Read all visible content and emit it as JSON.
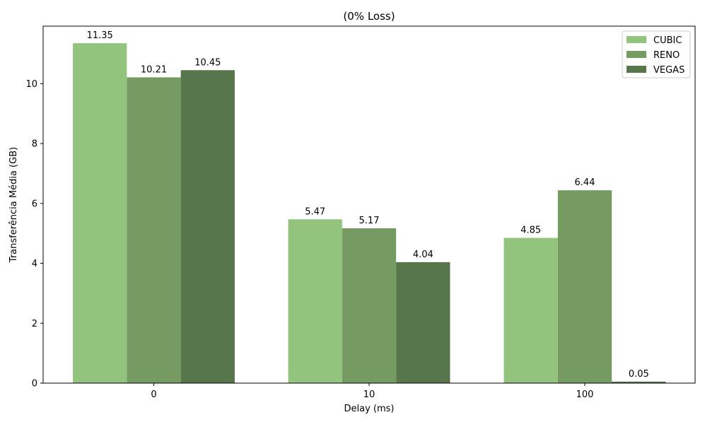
{
  "chart_data": {
    "type": "bar",
    "title": "(0% Loss)",
    "xlabel": "Delay (ms)",
    "ylabel": "Transferência Média (GB)",
    "categories": [
      "0",
      "10",
      "100"
    ],
    "series": [
      {
        "name": "CUBIC",
        "values": [
          11.35,
          5.47,
          4.85
        ],
        "labels": [
          "11.35",
          "5.47",
          "4.85"
        ],
        "color": "#93c47d"
      },
      {
        "name": "RENO",
        "values": [
          10.21,
          5.17,
          6.44
        ],
        "labels": [
          "10.21",
          "5.17",
          "6.44"
        ],
        "color": "#759b62"
      },
      {
        "name": "VEGAS",
        "values": [
          10.45,
          4.04,
          0.05
        ],
        "labels": [
          "10.45",
          "4.04",
          "0.05"
        ],
        "color": "#58764b"
      }
    ],
    "ylim": [
      0,
      11.92
    ],
    "yticks": [
      0,
      2,
      4,
      6,
      8,
      10
    ],
    "grid": false,
    "legend_position": "top-right"
  }
}
